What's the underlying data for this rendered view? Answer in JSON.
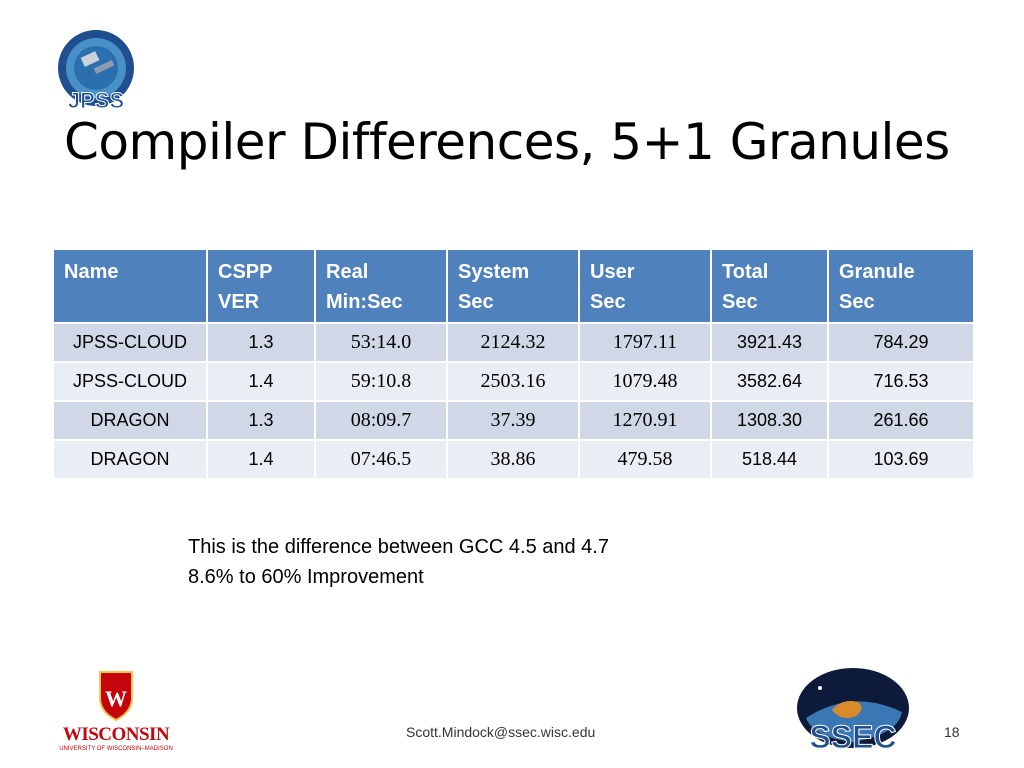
{
  "slide": {
    "title": "Compiler Differences, 5+1 Granules",
    "note_line1": "This is the difference between GCC 4.5 and 4.7",
    "note_line2": "8.6% to 60% Improvement",
    "footer_email": "Scott.Mindock@ssec.wisc.edu",
    "slide_number": "18",
    "logos": {
      "jpss": "JPSS",
      "uw": "WISCONSIN",
      "uw_sub": "UNIVERSITY OF WISCONSIN–MADISON",
      "ssec": "SSEC"
    }
  },
  "table": {
    "headers": [
      {
        "line1": "Name",
        "line2": ""
      },
      {
        "line1": "CSPP",
        "line2": "VER"
      },
      {
        "line1": "Real",
        "line2": "Min:Sec"
      },
      {
        "line1": "System",
        "line2": "Sec"
      },
      {
        "line1": "User",
        "line2": "Sec"
      },
      {
        "line1": "Total",
        "line2": "Sec"
      },
      {
        "line1": "Granule",
        "line2": "Sec"
      }
    ],
    "rows": [
      [
        "JPSS-CLOUD",
        "1.3",
        "53:14.0",
        "2124.32",
        "1797.11",
        "3921.43",
        "784.29"
      ],
      [
        "JPSS-CLOUD",
        "1.4",
        "59:10.8",
        "2503.16",
        "1079.48",
        "3582.64",
        "716.53"
      ],
      [
        "DRAGON",
        "1.3",
        "08:09.7",
        "37.39",
        "1270.91",
        "1308.30",
        "261.66"
      ],
      [
        "DRAGON",
        "1.4",
        "07:46.5",
        "38.86",
        "479.58",
        "518.44",
        "103.69"
      ]
    ]
  },
  "colors": {
    "header_bg": "#4f81bd",
    "row_odd": "#d0d8e8",
    "row_even": "#e9edf4"
  }
}
